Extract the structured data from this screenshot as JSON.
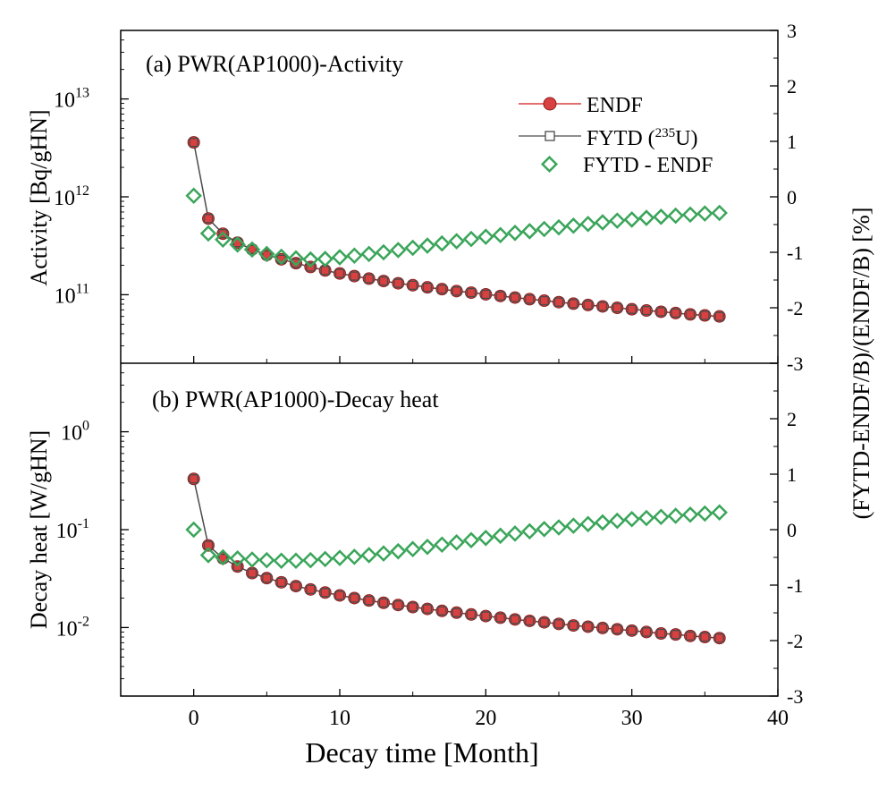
{
  "colors": {
    "endf": "#d94040",
    "endf_edge": "#8b2020",
    "fytd": "#4a4a4a",
    "diff": "#3aa55a",
    "axis": "#000000"
  },
  "shared": {
    "xlabel": "Decay time [Month]",
    "xlim": [
      -5,
      40
    ],
    "xticks": [
      "0",
      "10",
      "20",
      "30",
      "40"
    ],
    "right_ylabel": "(FYTD-ENDF/B)/(ENDF/B)  [%]",
    "right_ylim": [
      -3,
      3
    ],
    "right_ticks": [
      "3",
      "2",
      "1",
      "0",
      "-1",
      "-2",
      "-3"
    ],
    "legend": {
      "endf": "ENDF",
      "fytd_prefix": "FYTD (",
      "fytd_sup": "235",
      "fytd_suffix": "U)",
      "diff": "FYTD - ENDF"
    }
  },
  "panels": [
    {
      "title": "(a) PWR(AP1000)-Activity",
      "ylabel": "Activity [Bq/gHN]",
      "ytick_base": "10",
      "ytick_exps": [
        "13",
        "12",
        "11"
      ]
    },
    {
      "title": "(b) PWR(AP1000)-Decay heat",
      "ylabel": "Decay heat [W/gHN]",
      "ytick_base": "10",
      "ytick_exps": [
        "0",
        "-1",
        "-2"
      ]
    }
  ],
  "chart_data": [
    {
      "type": "scatter",
      "title": "(a) PWR(AP1000)-Activity",
      "xlabel": "Decay time [Month]",
      "ylabel": "Activity [Bq/gHN]",
      "right_ylabel": "(FYTD-ENDF/B)/(ENDF/B)  [%]",
      "xlim": [
        -5,
        40
      ],
      "ylim_log10": [
        10.3,
        13.7
      ],
      "right_ylim": [
        -3,
        3
      ],
      "yscale": "log",
      "x": [
        0,
        1,
        2,
        3,
        4,
        5,
        6,
        7,
        8,
        9,
        10,
        11,
        12,
        13,
        14,
        15,
        16,
        17,
        18,
        19,
        20,
        21,
        22,
        23,
        24,
        25,
        26,
        27,
        28,
        29,
        30,
        31,
        32,
        33,
        34,
        35,
        36
      ],
      "series": [
        {
          "name": "ENDF",
          "axis": "left",
          "values": [
            3600000000000.0,
            600000000000.0,
            420000000000.0,
            340000000000.0,
            290000000000.0,
            255000000000.0,
            230000000000.0,
            210000000000.0,
            192000000000.0,
            177000000000.0,
            165000000000.0,
            155000000000.0,
            146000000000.0,
            138000000000.0,
            131000000000.0,
            125000000000.0,
            119000000000.0,
            114000000000.0,
            109000000000.0,
            105000000000.0,
            101000000000.0,
            97000000000.0,
            93500000000.0,
            90000000000.0,
            87000000000.0,
            84000000000.0,
            81000000000.0,
            78500000000.0,
            76000000000.0,
            73500000000.0,
            71000000000.0,
            69000000000.0,
            67000000000.0,
            65000000000.0,
            63000000000.0,
            61500000000.0,
            60000000000.0
          ]
        },
        {
          "name": "FYTD (235U)",
          "axis": "left",
          "values": [
            3600000000000.0,
            600000000000.0,
            420000000000.0,
            340000000000.0,
            290000000000.0,
            255000000000.0,
            230000000000.0,
            210000000000.0,
            192000000000.0,
            177000000000.0,
            165000000000.0,
            155000000000.0,
            146000000000.0,
            138000000000.0,
            131000000000.0,
            125000000000.0,
            119000000000.0,
            114000000000.0,
            109000000000.0,
            105000000000.0,
            101000000000.0,
            97000000000.0,
            93500000000.0,
            90000000000.0,
            87000000000.0,
            84000000000.0,
            81000000000.0,
            78500000000.0,
            76000000000.0,
            73500000000.0,
            71000000000.0,
            69000000000.0,
            67000000000.0,
            65000000000.0,
            63000000000.0,
            61500000000.0,
            60000000000.0
          ]
        },
        {
          "name": "FYTD - ENDF",
          "axis": "right",
          "values": [
            0.02,
            -0.66,
            -0.77,
            -0.86,
            -0.95,
            -1.03,
            -1.08,
            -1.11,
            -1.13,
            -1.12,
            -1.09,
            -1.06,
            -1.03,
            -1.0,
            -0.96,
            -0.92,
            -0.88,
            -0.84,
            -0.8,
            -0.76,
            -0.72,
            -0.69,
            -0.65,
            -0.62,
            -0.58,
            -0.55,
            -0.52,
            -0.49,
            -0.46,
            -0.43,
            -0.41,
            -0.38,
            -0.36,
            -0.34,
            -0.32,
            -0.3,
            -0.29
          ]
        }
      ]
    },
    {
      "type": "scatter",
      "title": "(b) PWR(AP1000)-Decay heat",
      "xlabel": "Decay time [Month]",
      "ylabel": "Decay heat [W/gHN]",
      "right_ylabel": "(FYTD-ENDF/B)/(ENDF/B)  [%]",
      "xlim": [
        -5,
        40
      ],
      "ylim_log10": [
        -2.7,
        0.7
      ],
      "right_ylim": [
        -3,
        3
      ],
      "yscale": "log",
      "x": [
        0,
        1,
        2,
        3,
        4,
        5,
        6,
        7,
        8,
        9,
        10,
        11,
        12,
        13,
        14,
        15,
        16,
        17,
        18,
        19,
        20,
        21,
        22,
        23,
        24,
        25,
        26,
        27,
        28,
        29,
        30,
        31,
        32,
        33,
        34,
        35,
        36
      ],
      "series": [
        {
          "name": "ENDF",
          "axis": "left",
          "values": [
            0.33,
            0.069,
            0.051,
            0.042,
            0.036,
            0.032,
            0.029,
            0.0265,
            0.0245,
            0.0228,
            0.0213,
            0.02,
            0.0189,
            0.0179,
            0.017,
            0.0162,
            0.0155,
            0.0148,
            0.0142,
            0.0136,
            0.0131,
            0.0126,
            0.0121,
            0.0117,
            0.0113,
            0.0109,
            0.0105,
            0.0102,
            0.0099,
            0.0096,
            0.0093,
            0.009,
            0.0087,
            0.0085,
            0.0082,
            0.008,
            0.0078
          ]
        },
        {
          "name": "FYTD (235U)",
          "axis": "left",
          "values": [
            0.33,
            0.069,
            0.051,
            0.042,
            0.036,
            0.032,
            0.029,
            0.0265,
            0.0245,
            0.0228,
            0.0213,
            0.02,
            0.0189,
            0.0179,
            0.017,
            0.0162,
            0.0155,
            0.0148,
            0.0142,
            0.0136,
            0.0131,
            0.0126,
            0.0121,
            0.0117,
            0.0113,
            0.0109,
            0.0105,
            0.0102,
            0.0099,
            0.0096,
            0.0093,
            0.009,
            0.0087,
            0.0085,
            0.0082,
            0.008,
            0.0078
          ]
        },
        {
          "name": "FYTD - ENDF",
          "axis": "right",
          "values": [
            0.0,
            -0.46,
            -0.5,
            -0.52,
            -0.54,
            -0.55,
            -0.56,
            -0.56,
            -0.55,
            -0.53,
            -0.51,
            -0.49,
            -0.46,
            -0.43,
            -0.39,
            -0.35,
            -0.31,
            -0.27,
            -0.23,
            -0.19,
            -0.15,
            -0.11,
            -0.07,
            -0.03,
            0.01,
            0.04,
            0.07,
            0.1,
            0.13,
            0.16,
            0.19,
            0.21,
            0.23,
            0.25,
            0.27,
            0.29,
            0.31
          ]
        }
      ]
    }
  ]
}
